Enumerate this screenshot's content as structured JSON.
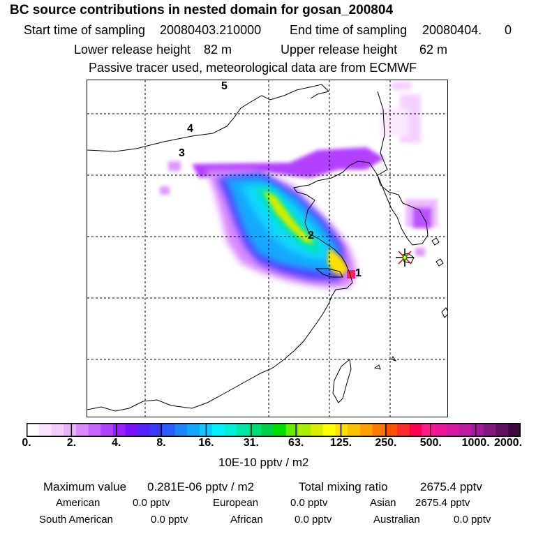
{
  "title": "BC  source contributions in nested domain for gosan_200804",
  "sampling": {
    "start_label": "Start time of sampling",
    "start_value": "20080403.210000",
    "end_label": "End time of sampling",
    "end_value": "20080404.",
    "end_extra": "0"
  },
  "release": {
    "lower_label": "Lower release height",
    "lower_value": "82 m",
    "upper_label": "Upper release height",
    "upper_value": "62 m"
  },
  "tracer_note": "Passive tracer used, meteorological data are from ECMWF",
  "trajectory_labels": [
    "1",
    "2",
    "3",
    "4",
    "5"
  ],
  "colorbar": {
    "ticks": [
      "0.",
      "2.",
      "4.",
      "8.",
      "16.",
      "31.",
      "63.",
      "125.",
      "250.",
      "500.",
      "1000.",
      "2000."
    ],
    "colors": [
      "#ffffff",
      "#fbe6ff",
      "#f4ccff",
      "#eab3ff",
      "#d98aff",
      "#c866ff",
      "#b440ff",
      "#9b1fff",
      "#7a10ff",
      "#5522ff",
      "#3a3aff",
      "#2a5cff",
      "#1c84ff",
      "#12a8ff",
      "#10c8ff",
      "#00f0ff",
      "#00f0d8",
      "#00e6a8",
      "#00dc78",
      "#00d04a",
      "#00e000",
      "#66ee00",
      "#a8f000",
      "#d8f000",
      "#ffff00",
      "#ffe000",
      "#ffc000",
      "#ffa000",
      "#ff7800",
      "#ff5000",
      "#ff2a2a",
      "#ff0050",
      "#ff1a8c",
      "#f0169c",
      "#d818a0",
      "#c01aa8",
      "#a01a9c",
      "#801880",
      "#601060",
      "#400840"
    ],
    "units": "10E-10 pptv / m2"
  },
  "stats": {
    "max_label": "Maximum value",
    "max_value": "0.281E-06 pptv / m2",
    "total_label": "Total mixing ratio",
    "total_value": "2675.4 pptv"
  },
  "contributions": [
    {
      "name": "American",
      "value": "0.0 pptv"
    },
    {
      "name": "European",
      "value": "0.0 pptv"
    },
    {
      "name": "Asian",
      "value": "2675.4 pptv"
    },
    {
      "name": "South American",
      "value": "0.0 pptv"
    },
    {
      "name": "African",
      "value": "0.0 pptv"
    },
    {
      "name": "Australian",
      "value": "0.0 pptv"
    }
  ]
}
